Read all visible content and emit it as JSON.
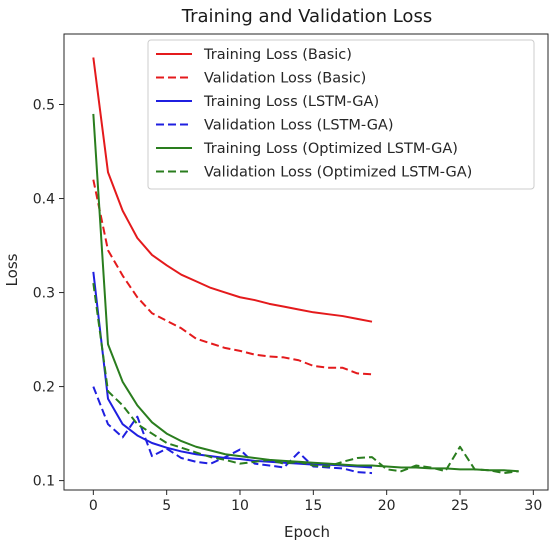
{
  "chart_data": {
    "type": "line",
    "title": "Training and Validation Loss",
    "xlabel": "Epoch",
    "ylabel": "Loss",
    "xlim": [
      -2,
      31
    ],
    "ylim": [
      0.09,
      0.575
    ],
    "xticks": [
      0,
      5,
      10,
      15,
      20,
      25,
      30
    ],
    "yticks": [
      0.1,
      0.2,
      0.3,
      0.4,
      0.5
    ],
    "grid": false,
    "legend_position": "top-right",
    "series": [
      {
        "name": "Training Loss (Basic)",
        "color": "#e41a1c",
        "linestyle": "solid",
        "x": [
          0,
          1,
          2,
          3,
          4,
          5,
          6,
          7,
          8,
          9,
          10,
          11,
          12,
          13,
          14,
          15,
          16,
          17,
          18,
          19
        ],
        "values": [
          0.55,
          0.428,
          0.387,
          0.358,
          0.34,
          0.329,
          0.319,
          0.312,
          0.305,
          0.3,
          0.295,
          0.292,
          0.288,
          0.285,
          0.282,
          0.279,
          0.277,
          0.275,
          0.272,
          0.269
        ]
      },
      {
        "name": "Validation Loss (Basic)",
        "color": "#e41a1c",
        "linestyle": "dashed",
        "x": [
          0,
          1,
          2,
          3,
          4,
          5,
          6,
          7,
          8,
          9,
          10,
          11,
          12,
          13,
          14,
          15,
          16,
          17,
          18,
          19
        ],
        "values": [
          0.42,
          0.345,
          0.318,
          0.295,
          0.278,
          0.27,
          0.262,
          0.251,
          0.246,
          0.241,
          0.238,
          0.234,
          0.232,
          0.231,
          0.228,
          0.222,
          0.22,
          0.22,
          0.214,
          0.213
        ]
      },
      {
        "name": "Training Loss (LSTM-GA)",
        "color": "#1f1fe0",
        "linestyle": "solid",
        "x": [
          0,
          1,
          2,
          3,
          4,
          5,
          6,
          7,
          8,
          9,
          10,
          11,
          12,
          13,
          14,
          15,
          16,
          17,
          18,
          19
        ],
        "values": [
          0.322,
          0.187,
          0.16,
          0.148,
          0.14,
          0.135,
          0.131,
          0.128,
          0.126,
          0.124,
          0.123,
          0.121,
          0.12,
          0.119,
          0.118,
          0.117,
          0.117,
          0.116,
          0.115,
          0.114
        ]
      },
      {
        "name": "Validation Loss (LSTM-GA)",
        "color": "#1f1fe0",
        "linestyle": "dashed",
        "x": [
          0,
          1,
          2,
          3,
          4,
          5,
          6,
          7,
          8,
          9,
          10,
          11,
          12,
          13,
          14,
          15,
          16,
          17,
          18,
          19
        ],
        "values": [
          0.2,
          0.16,
          0.146,
          0.168,
          0.126,
          0.134,
          0.124,
          0.12,
          0.118,
          0.125,
          0.133,
          0.118,
          0.116,
          0.114,
          0.13,
          0.115,
          0.114,
          0.113,
          0.109,
          0.108
        ]
      },
      {
        "name": "Training Loss (Optimized LSTM-GA)",
        "color": "#2a7d1e",
        "linestyle": "solid",
        "x": [
          0,
          1,
          2,
          3,
          4,
          5,
          6,
          7,
          8,
          9,
          10,
          11,
          12,
          13,
          14,
          15,
          16,
          17,
          18,
          19,
          20,
          21,
          22,
          23,
          24,
          25,
          26,
          27,
          28,
          29
        ],
        "values": [
          0.49,
          0.245,
          0.205,
          0.18,
          0.162,
          0.15,
          0.142,
          0.136,
          0.132,
          0.128,
          0.126,
          0.124,
          0.122,
          0.121,
          0.12,
          0.119,
          0.118,
          0.117,
          0.116,
          0.116,
          0.115,
          0.114,
          0.114,
          0.113,
          0.113,
          0.112,
          0.112,
          0.111,
          0.111,
          0.11
        ]
      },
      {
        "name": "Validation Loss (Optimized LSTM-GA)",
        "color": "#2a7d1e",
        "linestyle": "dashed",
        "x": [
          0,
          1,
          2,
          3,
          4,
          5,
          6,
          7,
          8,
          9,
          10,
          11,
          12,
          13,
          14,
          15,
          16,
          17,
          18,
          19,
          20,
          21,
          22,
          23,
          24,
          25,
          26,
          27,
          28,
          29
        ],
        "values": [
          0.31,
          0.195,
          0.18,
          0.16,
          0.15,
          0.14,
          0.135,
          0.13,
          0.125,
          0.122,
          0.118,
          0.12,
          0.122,
          0.118,
          0.12,
          0.116,
          0.115,
          0.12,
          0.124,
          0.125,
          0.112,
          0.11,
          0.116,
          0.114,
          0.11,
          0.136,
          0.112,
          0.111,
          0.108,
          0.11
        ]
      }
    ]
  }
}
